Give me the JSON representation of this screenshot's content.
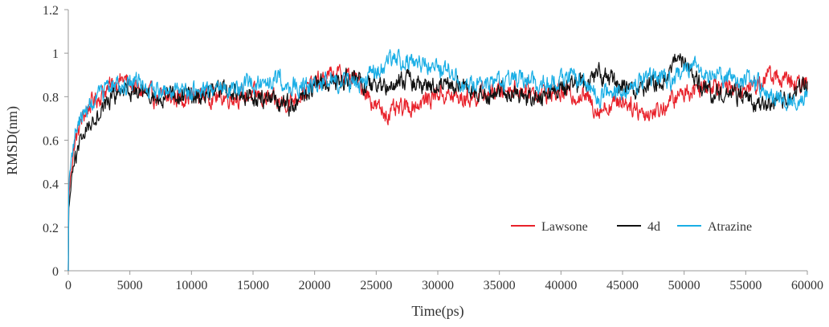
{
  "chart_data": {
    "type": "line",
    "title": "",
    "xlabel": "Time(ps)",
    "ylabel": "RMSD(nm)",
    "xlim": [
      0,
      60000
    ],
    "ylim": [
      0,
      1.2
    ],
    "x_ticks": [
      "0",
      "5000",
      "10000",
      "15000",
      "20000",
      "25000",
      "30000",
      "35000",
      "40000",
      "45000",
      "50000",
      "55000",
      "60000"
    ],
    "y_ticks": [
      "0",
      "0.2",
      "0.4",
      "0.6",
      "0.8",
      "1",
      "1.2"
    ],
    "grid": false,
    "legend_position": "bottom-right",
    "colors": {
      "Lawsone": "#e8212a",
      "4d": "#111111",
      "Atrazine": "#1aaee5"
    },
    "series": [
      {
        "name": "Lawsone",
        "x": [
          0,
          200,
          500,
          1000,
          1500,
          2000,
          2500,
          3000,
          3500,
          4000,
          4500,
          5000,
          6000,
          7000,
          8000,
          9000,
          10000,
          11000,
          12000,
          13000,
          14000,
          15000,
          16000,
          17000,
          18000,
          19000,
          20000,
          21000,
          22000,
          23000,
          24000,
          25000,
          26000,
          27000,
          28000,
          29000,
          30000,
          31000,
          32000,
          33000,
          34000,
          35000,
          36000,
          37000,
          38000,
          39000,
          40000,
          41000,
          42000,
          43000,
          44000,
          45000,
          46000,
          47000,
          48000,
          49000,
          50000,
          51000,
          52000,
          53000,
          54000,
          55000,
          56000,
          57000,
          58000,
          59000,
          60000
        ],
        "y": [
          0.3,
          0.45,
          0.58,
          0.68,
          0.74,
          0.78,
          0.8,
          0.83,
          0.85,
          0.87,
          0.88,
          0.86,
          0.82,
          0.8,
          0.79,
          0.8,
          0.8,
          0.81,
          0.8,
          0.8,
          0.8,
          0.81,
          0.79,
          0.77,
          0.78,
          0.82,
          0.86,
          0.89,
          0.9,
          0.89,
          0.84,
          0.75,
          0.72,
          0.74,
          0.76,
          0.78,
          0.82,
          0.8,
          0.79,
          0.8,
          0.82,
          0.83,
          0.84,
          0.83,
          0.82,
          0.82,
          0.82,
          0.81,
          0.8,
          0.74,
          0.76,
          0.79,
          0.75,
          0.72,
          0.74,
          0.78,
          0.82,
          0.84,
          0.86,
          0.86,
          0.83,
          0.84,
          0.86,
          0.9,
          0.88,
          0.85,
          0.86
        ]
      },
      {
        "name": "4d",
        "x": [
          0,
          200,
          500,
          1000,
          1500,
          2000,
          2500,
          3000,
          3500,
          4000,
          4500,
          5000,
          6000,
          7000,
          8000,
          9000,
          10000,
          11000,
          12000,
          13000,
          14000,
          15000,
          16000,
          17000,
          18000,
          19000,
          20000,
          21000,
          22000,
          23000,
          24000,
          25000,
          26000,
          27000,
          28000,
          29000,
          30000,
          31000,
          32000,
          33000,
          34000,
          35000,
          36000,
          37000,
          38000,
          39000,
          40000,
          41000,
          42000,
          43000,
          44000,
          45000,
          46000,
          47000,
          48000,
          49000,
          50000,
          51000,
          52000,
          53000,
          54000,
          55000,
          56000,
          57000,
          58000,
          59000,
          60000
        ],
        "y": [
          0.25,
          0.38,
          0.5,
          0.6,
          0.66,
          0.7,
          0.73,
          0.76,
          0.79,
          0.82,
          0.8,
          0.83,
          0.8,
          0.79,
          0.81,
          0.8,
          0.8,
          0.81,
          0.83,
          0.82,
          0.81,
          0.8,
          0.79,
          0.77,
          0.76,
          0.8,
          0.84,
          0.86,
          0.87,
          0.88,
          0.86,
          0.84,
          0.85,
          0.88,
          0.87,
          0.85,
          0.84,
          0.85,
          0.84,
          0.83,
          0.82,
          0.83,
          0.82,
          0.8,
          0.79,
          0.82,
          0.84,
          0.86,
          0.85,
          0.91,
          0.88,
          0.84,
          0.83,
          0.85,
          0.86,
          0.93,
          0.97,
          0.88,
          0.82,
          0.8,
          0.81,
          0.8,
          0.77,
          0.76,
          0.78,
          0.82,
          0.86
        ]
      },
      {
        "name": "Atrazine",
        "x": [
          0,
          200,
          500,
          1000,
          1500,
          2000,
          2500,
          3000,
          3500,
          4000,
          4500,
          5000,
          6000,
          7000,
          8000,
          9000,
          10000,
          11000,
          12000,
          13000,
          14000,
          15000,
          16000,
          17000,
          18000,
          19000,
          20000,
          21000,
          22000,
          23000,
          24000,
          25000,
          26000,
          27000,
          28000,
          29000,
          30000,
          31000,
          32000,
          33000,
          34000,
          35000,
          36000,
          37000,
          38000,
          39000,
          40000,
          41000,
          42000,
          43000,
          44000,
          45000,
          46000,
          47000,
          48000,
          49000,
          50000,
          51000,
          52000,
          53000,
          54000,
          55000,
          56000,
          57000,
          58000,
          59000,
          60000
        ],
        "y": [
          0.35,
          0.5,
          0.62,
          0.7,
          0.74,
          0.78,
          0.8,
          0.82,
          0.85,
          0.86,
          0.84,
          0.88,
          0.85,
          0.82,
          0.81,
          0.82,
          0.82,
          0.83,
          0.84,
          0.84,
          0.85,
          0.86,
          0.87,
          0.88,
          0.85,
          0.84,
          0.86,
          0.88,
          0.87,
          0.86,
          0.87,
          0.92,
          0.96,
          0.97,
          0.96,
          0.95,
          0.94,
          0.92,
          0.86,
          0.85,
          0.85,
          0.86,
          0.87,
          0.88,
          0.86,
          0.86,
          0.88,
          0.89,
          0.87,
          0.8,
          0.82,
          0.83,
          0.86,
          0.88,
          0.88,
          0.87,
          0.92,
          0.94,
          0.9,
          0.89,
          0.88,
          0.88,
          0.86,
          0.8,
          0.79,
          0.79,
          0.82
        ]
      }
    ]
  }
}
